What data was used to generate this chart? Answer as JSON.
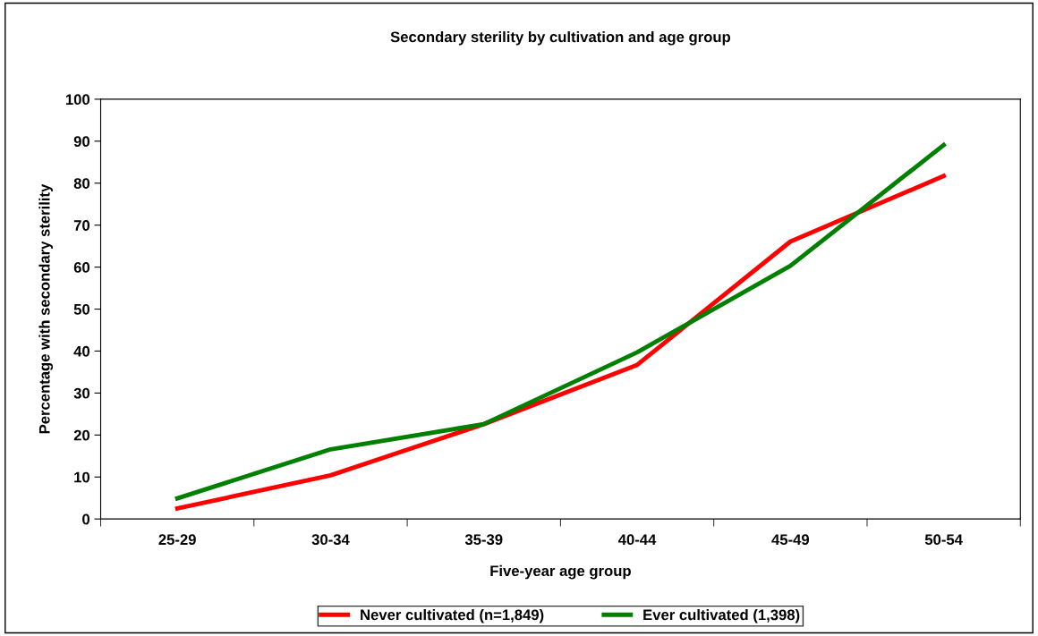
{
  "chart_data": {
    "type": "line",
    "title": "Secondary sterility by cultivation and age group",
    "xlabel": "Five-year age group",
    "ylabel": "Percentage with secondary sterility",
    "categories": [
      "25-29",
      "30-34",
      "35-39",
      "40-44",
      "45-49",
      "50-54"
    ],
    "series": [
      {
        "name": "Never cultivated (n=1,849)",
        "color": "#ff0000",
        "values": [
          2.5,
          10.4,
          22.6,
          36.7,
          66.1,
          81.7
        ]
      },
      {
        "name": "Ever cultivated (1,398)",
        "color": "#008000",
        "values": [
          4.9,
          16.6,
          22.6,
          39.7,
          60.3,
          89.1
        ]
      }
    ],
    "ylim": [
      0,
      100
    ],
    "yticks": [
      0,
      10,
      20,
      30,
      40,
      50,
      60,
      70,
      80,
      90,
      100
    ],
    "grid": false,
    "legend": "bottom",
    "marker": "none",
    "line_style": "solid"
  }
}
